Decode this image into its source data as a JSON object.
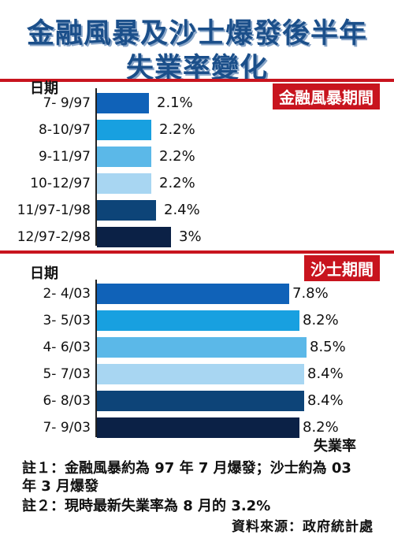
{
  "title_line1": "金融風暴及沙士爆發後半年",
  "title_line2": "失業率變化",
  "colors": {
    "accent_red": "#c8141e",
    "title_blue": "#1b4f8a",
    "bar_colors": [
      "#1062b8",
      "#18a0e0",
      "#5bb8e8",
      "#a8d6f2",
      "#0d4478",
      "#0b2146"
    ]
  },
  "chart_data": [
    {
      "type": "bar",
      "orientation": "horizontal",
      "header_label": "日期",
      "badge": "金融風暴期間",
      "categories": [
        "7- 9/97",
        "8-10/97",
        "9-11/97",
        "10-12/97",
        "11/97-1/98",
        "12/97-2/98"
      ],
      "values": [
        2.1,
        2.2,
        2.2,
        2.2,
        2.4,
        3.0
      ],
      "value_labels": [
        "2.1%",
        "2.2%",
        "2.2%",
        "2.2%",
        "2.4%",
        "3%"
      ]
    },
    {
      "type": "bar",
      "orientation": "horizontal",
      "header_label": "日期",
      "badge": "沙士期間",
      "categories": [
        "2- 4/03",
        "3- 5/03",
        "4- 6/03",
        "5- 7/03",
        "6- 8/03",
        "7- 9/03"
      ],
      "values": [
        7.8,
        8.2,
        8.5,
        8.4,
        8.4,
        8.2
      ],
      "value_labels": [
        "7.8%",
        "8.2%",
        "8.5%",
        "8.4%",
        "8.4%",
        "8.2%"
      ],
      "xlabel": "失業率"
    }
  ],
  "notes": {
    "note1_line1": "註１：金融風暴約為 97 年 7 月爆發；沙士約為 03",
    "note1_line2": "年 3 月爆發",
    "note2": "註２：現時最新失業率為 8 月的 3.2%"
  },
  "source": "資料來源：政府統計處"
}
